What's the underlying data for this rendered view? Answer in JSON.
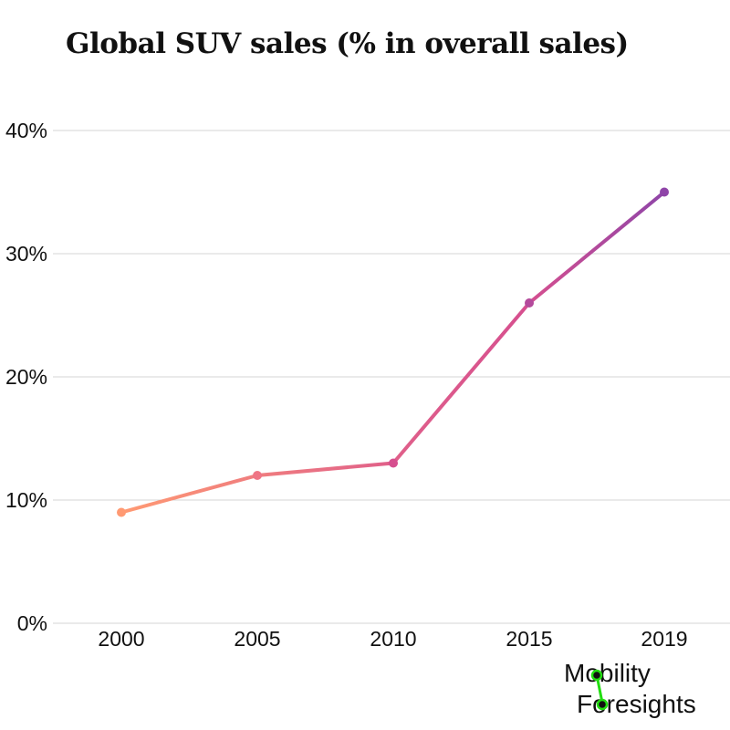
{
  "chart_data": {
    "type": "line",
    "title": "Global SUV sales (% in overall sales)",
    "categories": [
      "2000",
      "2005",
      "2010",
      "2015",
      "2019"
    ],
    "values": [
      9,
      12,
      13,
      26,
      35
    ],
    "yticks": [
      "0%",
      "10%",
      "20%",
      "30%",
      "40%"
    ],
    "ylim": [
      0,
      40
    ],
    "grid": true,
    "line_gradient": [
      "#ff9a73",
      "#e0608a",
      "#d64f8f",
      "#8f45a8"
    ]
  },
  "logo": {
    "line1": "Mobility",
    "line2": "Foresights",
    "accent_color": "#22dd11"
  }
}
